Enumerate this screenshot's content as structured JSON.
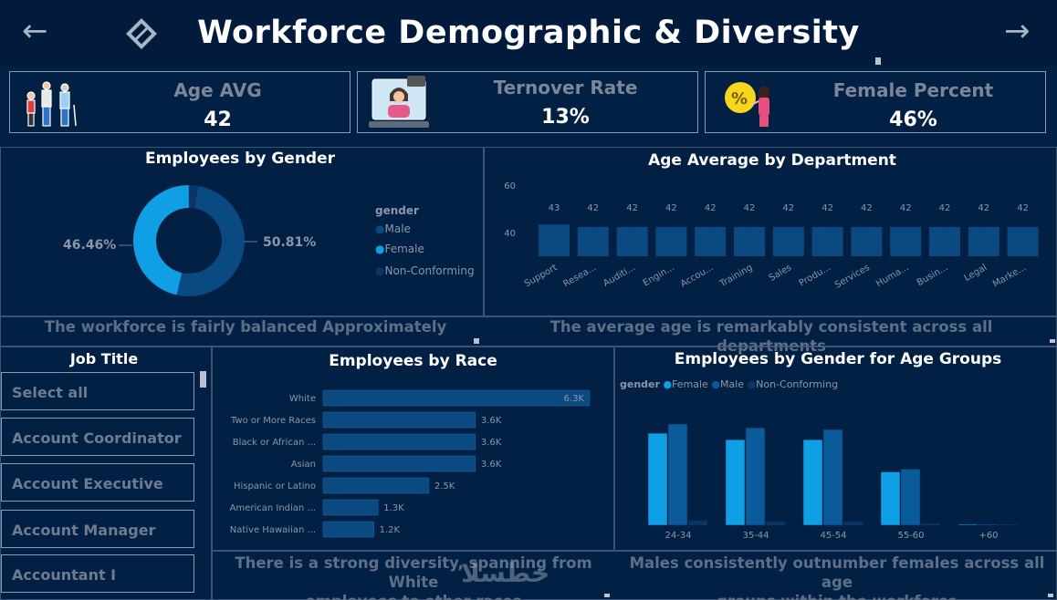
{
  "header": {
    "title": "Workforce Demographic & Diversity",
    "back_icon": "arrow-left-icon",
    "forward_icon": "arrow-right-icon"
  },
  "kpis": [
    {
      "label": "Age AVG",
      "value": "42",
      "icon": "people-icon"
    },
    {
      "label": "Ternover Rate",
      "value": "13%",
      "icon": "laptop-person-icon"
    },
    {
      "label": "Female Percent",
      "value": "46%",
      "icon": "woman-percent-icon"
    }
  ],
  "gender_chart": {
    "title": "Employees by Gender",
    "legend_title": "gender",
    "legend": [
      "Male",
      "Female",
      "Non-Conforming"
    ],
    "labels": [
      "46.46%",
      "50.81%"
    ],
    "insight": "The workforce is fairly balanced Approximately",
    "chart_data": {
      "type": "pie",
      "categories": [
        "Male",
        "Female",
        "Non-Conforming"
      ],
      "values": [
        50.81,
        46.46,
        2.73
      ],
      "colors": [
        "#0b4a80",
        "#0f9fe5",
        "#0a3566"
      ]
    }
  },
  "age_dept_chart": {
    "title": "Age Average by Department",
    "insight": "The average age is remarkably consistent across all departments",
    "chart_data": {
      "type": "bar",
      "categories": [
        "Support",
        "Resea...",
        "Auditi...",
        "Engin...",
        "Accou...",
        "Training",
        "Sales",
        "Produ...",
        "Services",
        "Huma...",
        "Busin...",
        "Legal",
        "Marke..."
      ],
      "values": [
        43,
        42,
        42,
        42,
        42,
        42,
        42,
        42,
        42,
        42,
        42,
        42,
        42
      ],
      "yticks": [
        40,
        60
      ],
      "ylim": [
        30,
        62
      ]
    }
  },
  "job_title": {
    "title": "Job Title",
    "items": [
      "Select all",
      "Account Coordinator",
      "Account Executive",
      "Account Manager",
      "Accountant I"
    ]
  },
  "race_chart": {
    "title": "Employees by Race",
    "insight_line1": "There is a strong diversity, spanning from White",
    "insight_line2": "employees to other races",
    "chart_data": {
      "type": "bar",
      "orientation": "horizontal",
      "categories": [
        "White",
        "Two or More Races",
        "Black or African ...",
        "Asian",
        "Hispanic or Latino",
        "American Indian ...",
        "Native Hawaiian ..."
      ],
      "values": [
        6300,
        3600,
        3600,
        3600,
        2500,
        1300,
        1200
      ],
      "labels": [
        "6.3K",
        "3.6K",
        "3.6K",
        "3.6K",
        "2.5K",
        "1.3K",
        "1.2K"
      ],
      "xlim": [
        0,
        6300
      ]
    }
  },
  "age_group_chart": {
    "title": "Employees by Gender for Age Groups",
    "legend_title": "gender",
    "legend": [
      "Female",
      "Male",
      "Non-Conforming"
    ],
    "insight_line1": "Males consistently outnumber females across all age",
    "insight_line2": "groups within the workforce",
    "chart_data": {
      "type": "bar",
      "categories": [
        "24-34",
        "35-44",
        "45-54",
        "55-60",
        "+60"
      ],
      "series": [
        {
          "name": "Female",
          "values": [
            100,
            93,
            93,
            58,
            1
          ],
          "color": "#0f9fe5"
        },
        {
          "name": "Male",
          "values": [
            110,
            106,
            104,
            61,
            1
          ],
          "color": "#0b5a99"
        },
        {
          "name": "Non-Conforming",
          "values": [
            5,
            4,
            4,
            2,
            0.5
          ],
          "color": "#0a3566"
        }
      ],
      "ylim": [
        0,
        115
      ]
    }
  },
  "watermark": "خطسلا"
}
